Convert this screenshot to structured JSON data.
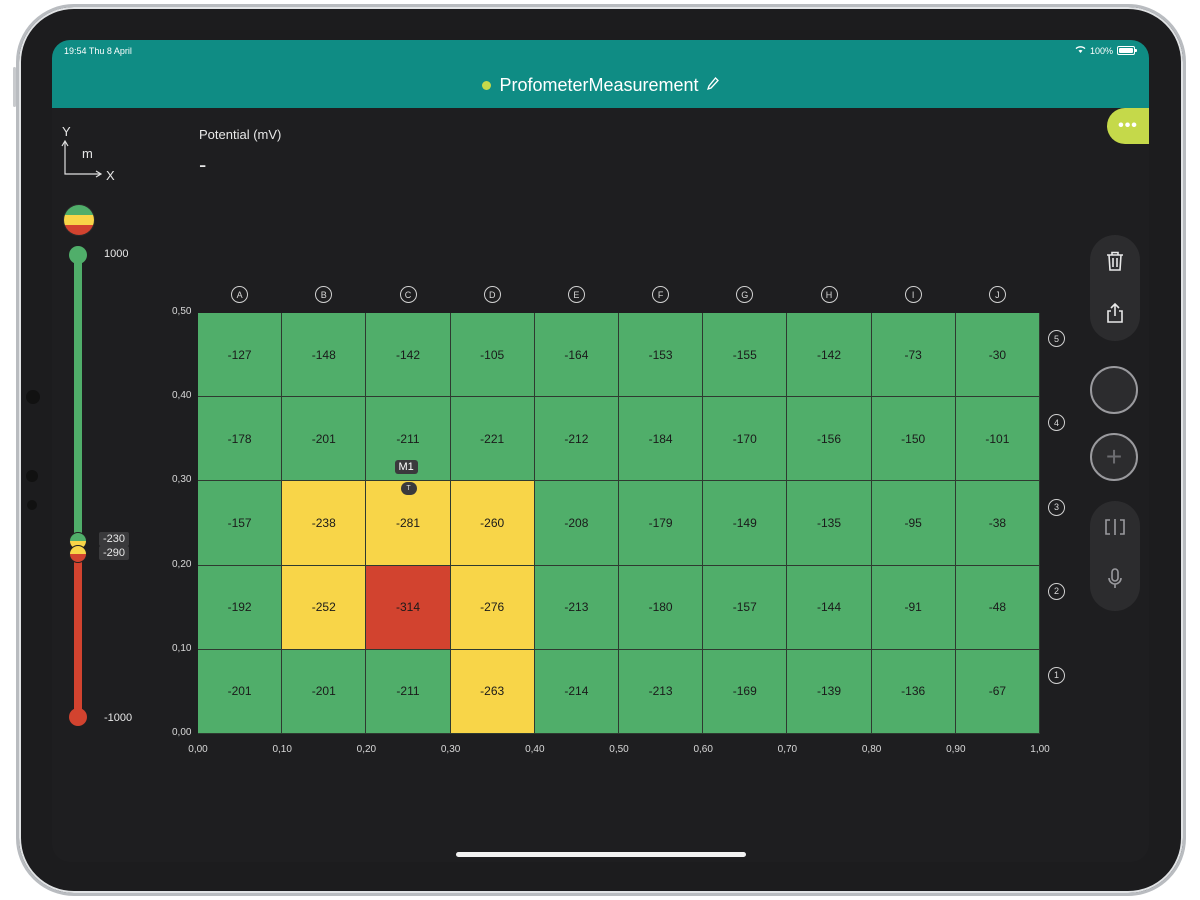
{
  "status": {
    "time": "19:54  Thu 8 April",
    "battery": "100%"
  },
  "header": {
    "title": "ProfometerMeasurement",
    "status_color": "#c5d94a",
    "bar_color": "#0f8c84"
  },
  "axes_icon": {
    "y": "Y",
    "unit": "m",
    "x": "X"
  },
  "metric": {
    "title": "Potential (mV)",
    "value": "-"
  },
  "scale": {
    "max": "1000",
    "upper": "-230",
    "lower": "-290",
    "min": "-1000"
  },
  "colors": {
    "green": "#50ae6a",
    "yellow": "#f8d548",
    "red": "#d2432f"
  },
  "chart_data": {
    "type": "heatmap",
    "columns": [
      "A",
      "B",
      "C",
      "D",
      "E",
      "F",
      "G",
      "H",
      "I",
      "J"
    ],
    "rows": [
      "5",
      "4",
      "3",
      "2",
      "1"
    ],
    "values": [
      [
        -127,
        -148,
        -142,
        -105,
        -164,
        -153,
        -155,
        -142,
        -73,
        -30
      ],
      [
        -178,
        -201,
        -211,
        -221,
        -212,
        -184,
        -170,
        -156,
        -150,
        -101
      ],
      [
        -157,
        -238,
        -281,
        -260,
        -208,
        -179,
        -149,
        -135,
        -95,
        -38
      ],
      [
        -192,
        -252,
        -314,
        -276,
        -213,
        -180,
        -157,
        -144,
        -91,
        -48
      ],
      [
        -201,
        -201,
        -211,
        -263,
        -214,
        -213,
        -169,
        -139,
        -136,
        -67
      ]
    ],
    "x_ticks": [
      "0,00",
      "0,10",
      "0,20",
      "0,30",
      "0,40",
      "0,50",
      "0,60",
      "0,70",
      "0,80",
      "0,90",
      "1,00"
    ],
    "y_ticks": [
      "0,50",
      "0,40",
      "0,30",
      "0,20",
      "0,10",
      "0,00"
    ],
    "thresholds": {
      "upper": -230,
      "lower": -290
    }
  },
  "marker": {
    "label": "M1",
    "badge": "T",
    "column": 2,
    "row": 2
  },
  "tools": {
    "delete": "trash-icon",
    "share": "share-icon",
    "split": "split-view-icon",
    "mic": "microphone-icon",
    "add": "+"
  }
}
